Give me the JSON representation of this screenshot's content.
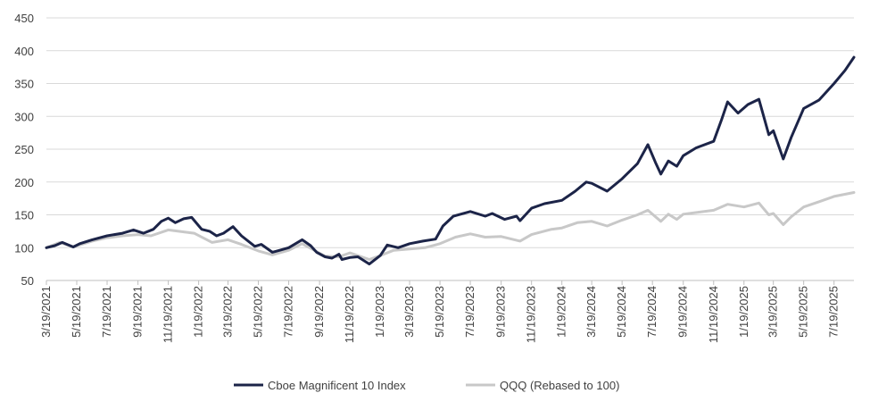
{
  "chart_data": {
    "type": "line",
    "title": "",
    "xlabel": "",
    "ylabel": "",
    "ylim": [
      50,
      450
    ],
    "yticks": [
      50,
      100,
      150,
      200,
      250,
      300,
      350,
      400,
      450
    ],
    "xlim": [
      "3/19/2021",
      "8/28/2025"
    ],
    "xticks": [
      "3/19/2021",
      "5/19/2021",
      "7/19/2021",
      "9/19/2021",
      "11/19/2021",
      "1/19/2022",
      "3/19/2022",
      "5/19/2022",
      "7/19/2022",
      "9/19/2022",
      "11/19/2022",
      "1/19/2023",
      "3/19/2023",
      "5/19/2023",
      "7/19/2023",
      "9/19/2023",
      "11/19/2023",
      "1/19/2024",
      "3/19/2024",
      "5/19/2024",
      "7/19/2024",
      "9/19/2024",
      "11/19/2024",
      "1/19/2025",
      "3/19/2025",
      "5/19/2025",
      "7/19/2025"
    ],
    "grid": "horizontal",
    "legend_position": "bottom-center",
    "series": [
      {
        "name": "Cboe Magnificent 10 Index",
        "color": "#1c2448",
        "points": [
          [
            "3/19/2021",
            100
          ],
          [
            "4/5/2021",
            103
          ],
          [
            "4/20/2021",
            108
          ],
          [
            "5/12/2021",
            101
          ],
          [
            "5/25/2021",
            106
          ],
          [
            "6/19/2021",
            112
          ],
          [
            "7/19/2021",
            118
          ],
          [
            "8/19/2021",
            122
          ],
          [
            "9/10/2021",
            127
          ],
          [
            "9/30/2021",
            122
          ],
          [
            "10/20/2021",
            128
          ],
          [
            "11/5/2021",
            140
          ],
          [
            "11/19/2021",
            145
          ],
          [
            "12/3/2021",
            138
          ],
          [
            "12/20/2021",
            144
          ],
          [
            "1/5/2022",
            146
          ],
          [
            "1/25/2022",
            128
          ],
          [
            "2/10/2022",
            125
          ],
          [
            "2/24/2022",
            118
          ],
          [
            "3/10/2022",
            122
          ],
          [
            "3/29/2022",
            132
          ],
          [
            "4/15/2022",
            118
          ],
          [
            "5/12/2022",
            102
          ],
          [
            "5/25/2022",
            105
          ],
          [
            "6/16/2022",
            93
          ],
          [
            "7/1/2022",
            96
          ],
          [
            "7/19/2022",
            100
          ],
          [
            "8/15/2022",
            112
          ],
          [
            "9/1/2022",
            103
          ],
          [
            "9/13/2022",
            93
          ],
          [
            "9/30/2022",
            86
          ],
          [
            "10/14/2022",
            84
          ],
          [
            "10/28/2022",
            90
          ],
          [
            "11/3/2022",
            82
          ],
          [
            "11/19/2022",
            85
          ],
          [
            "12/5/2022",
            86
          ],
          [
            "12/28/2022",
            75
          ],
          [
            "1/19/2023",
            88
          ],
          [
            "2/2/2023",
            104
          ],
          [
            "2/24/2023",
            100
          ],
          [
            "3/19/2023",
            106
          ],
          [
            "4/15/2023",
            110
          ],
          [
            "5/10/2023",
            113
          ],
          [
            "5/25/2023",
            133
          ],
          [
            "6/15/2023",
            148
          ],
          [
            "7/19/2023",
            155
          ],
          [
            "8/18/2023",
            148
          ],
          [
            "9/1/2023",
            152
          ],
          [
            "9/26/2023",
            143
          ],
          [
            "10/20/2023",
            148
          ],
          [
            "10/27/2023",
            141
          ],
          [
            "11/19/2023",
            160
          ],
          [
            "12/15/2023",
            167
          ],
          [
            "1/19/2024",
            172
          ],
          [
            "2/15/2024",
            186
          ],
          [
            "3/8/2024",
            200
          ],
          [
            "3/19/2024",
            198
          ],
          [
            "4/19/2024",
            186
          ],
          [
            "5/19/2024",
            205
          ],
          [
            "6/19/2024",
            228
          ],
          [
            "7/10/2024",
            257
          ],
          [
            "7/25/2024",
            230
          ],
          [
            "8/5/2024",
            212
          ],
          [
            "8/20/2024",
            232
          ],
          [
            "9/6/2024",
            224
          ],
          [
            "9/19/2024",
            240
          ],
          [
            "10/15/2024",
            252
          ],
          [
            "11/19/2024",
            262
          ],
          [
            "12/5/2024",
            295
          ],
          [
            "12/17/2024",
            322
          ],
          [
            "1/7/2025",
            305
          ],
          [
            "1/27/2025",
            318
          ],
          [
            "2/18/2025",
            326
          ],
          [
            "3/10/2025",
            272
          ],
          [
            "3/19/2025",
            278
          ],
          [
            "4/8/2025",
            235
          ],
          [
            "4/24/2025",
            268
          ],
          [
            "5/19/2025",
            312
          ],
          [
            "6/19/2025",
            325
          ],
          [
            "7/19/2025",
            350
          ],
          [
            "8/10/2025",
            370
          ],
          [
            "8/28/2025",
            390
          ]
        ]
      },
      {
        "name": "QQQ (Rebased to 100)",
        "color": "#c8c8c8",
        "points": [
          [
            "3/19/2021",
            100
          ],
          [
            "4/15/2021",
            108
          ],
          [
            "5/12/2021",
            101
          ],
          [
            "6/19/2021",
            110
          ],
          [
            "7/19/2021",
            115
          ],
          [
            "8/19/2021",
            118
          ],
          [
            "9/19/2021",
            120
          ],
          [
            "10/15/2021",
            118
          ],
          [
            "11/19/2021",
            127
          ],
          [
            "12/20/2021",
            124
          ],
          [
            "1/10/2022",
            122
          ],
          [
            "2/15/2022",
            108
          ],
          [
            "3/19/2022",
            112
          ],
          [
            "4/15/2022",
            105
          ],
          [
            "5/19/2022",
            95
          ],
          [
            "6/16/2022",
            89
          ],
          [
            "7/19/2022",
            96
          ],
          [
            "8/15/2022",
            106
          ],
          [
            "9/30/2022",
            87
          ],
          [
            "10/28/2022",
            86
          ],
          [
            "11/19/2022",
            92
          ],
          [
            "12/28/2022",
            82
          ],
          [
            "1/19/2023",
            88
          ],
          [
            "2/15/2023",
            96
          ],
          [
            "3/19/2023",
            98
          ],
          [
            "4/19/2023",
            100
          ],
          [
            "5/19/2023",
            106
          ],
          [
            "6/19/2023",
            116
          ],
          [
            "7/19/2023",
            121
          ],
          [
            "8/18/2023",
            116
          ],
          [
            "9/19/2023",
            117
          ],
          [
            "10/27/2023",
            110
          ],
          [
            "11/19/2023",
            120
          ],
          [
            "12/29/2023",
            128
          ],
          [
            "1/19/2024",
            130
          ],
          [
            "2/19/2024",
            138
          ],
          [
            "3/19/2024",
            140
          ],
          [
            "4/19/2024",
            133
          ],
          [
            "5/19/2024",
            142
          ],
          [
            "6/19/2024",
            150
          ],
          [
            "7/10/2024",
            157
          ],
          [
            "8/5/2024",
            140
          ],
          [
            "8/20/2024",
            151
          ],
          [
            "9/6/2024",
            143
          ],
          [
            "9/19/2024",
            151
          ],
          [
            "10/19/2024",
            154
          ],
          [
            "11/19/2024",
            157
          ],
          [
            "12/17/2024",
            166
          ],
          [
            "1/19/2025",
            162
          ],
          [
            "2/18/2025",
            168
          ],
          [
            "3/10/2025",
            150
          ],
          [
            "3/19/2025",
            152
          ],
          [
            "4/8/2025",
            135
          ],
          [
            "4/24/2025",
            147
          ],
          [
            "5/19/2025",
            162
          ],
          [
            "6/19/2025",
            170
          ],
          [
            "7/19/2025",
            178
          ],
          [
            "8/28/2025",
            184
          ]
        ]
      }
    ]
  }
}
